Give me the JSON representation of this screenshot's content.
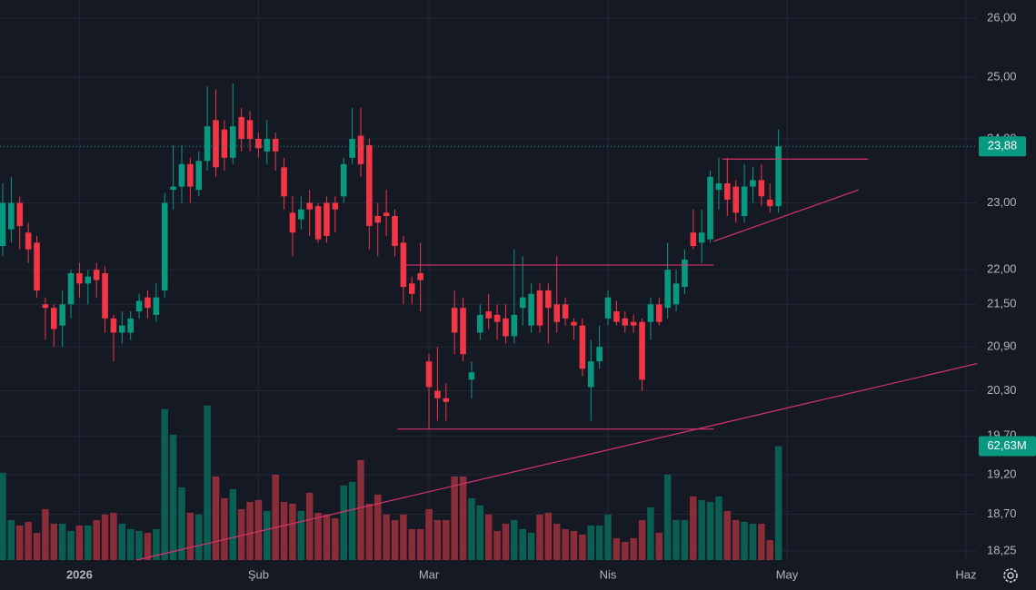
{
  "chart_data": {
    "type": "candlestick",
    "log_scale": true,
    "grid": true,
    "background": "#151924",
    "grid_color": "#232734",
    "text_color": "#b2b5be",
    "up_color": "#089981",
    "down_color": "#f23645",
    "up_volume_color": "#0b5e52",
    "down_volume_color": "#8a2d38",
    "x": [
      0,
      1,
      2,
      3,
      4,
      5,
      6,
      7,
      8,
      9,
      10,
      11,
      12,
      13,
      14,
      15,
      16,
      17,
      18,
      19,
      20,
      21,
      22,
      23,
      24,
      25,
      26,
      27,
      28,
      29,
      30,
      31,
      32,
      33,
      34,
      35,
      36,
      37,
      38,
      39,
      40,
      41,
      42,
      43,
      44,
      45,
      46,
      47,
      48,
      49,
      50,
      51,
      52,
      53,
      54,
      55,
      56,
      57,
      58,
      59,
      60,
      61,
      62,
      63,
      64,
      65,
      66,
      67,
      68,
      69,
      70,
      71,
      72,
      73,
      74,
      75,
      76,
      77,
      78,
      79,
      80,
      81,
      82,
      83,
      84,
      85,
      86,
      87,
      88,
      89,
      90,
      91
    ],
    "open": [
      22.35,
      22.6,
      23.0,
      22.55,
      22.4,
      21.5,
      21.45,
      21.2,
      21.5,
      21.95,
      21.8,
      22.0,
      21.95,
      21.3,
      21.1,
      21.1,
      21.4,
      21.6,
      21.35,
      21.7,
      23.2,
      23.25,
      23.6,
      23.2,
      23.65,
      24.3,
      24.15,
      23.7,
      24.35,
      24.3,
      24.0,
      23.8,
      24.0,
      23.55,
      22.85,
      22.75,
      23.0,
      22.95,
      23.0,
      23.0,
      23.1,
      23.7,
      24.05,
      23.9,
      22.8,
      22.85,
      22.8,
      22.4,
      21.8,
      21.95,
      20.7,
      20.3,
      20.2,
      21.45,
      21.45,
      20.45,
      21.1,
      21.4,
      21.35,
      21.3,
      21.05,
      21.45,
      21.2,
      21.7,
      21.7,
      21.5,
      21.5,
      21.25,
      21.2,
      20.35,
      20.7,
      21.3,
      21.4,
      21.3,
      21.25,
      21.25,
      21.25,
      21.5,
      21.45,
      21.5,
      21.75,
      22.55,
      22.4,
      22.45,
      23.2,
      23.3,
      23.25,
      22.8,
      23.25,
      23.35,
      23.05,
      22.95
    ],
    "high": [
      23.3,
      23.4,
      23.1,
      22.7,
      22.5,
      21.6,
      21.5,
      21.7,
      22.0,
      22.1,
      22.0,
      22.1,
      22.05,
      21.35,
      21.4,
      21.4,
      21.65,
      21.7,
      21.8,
      23.15,
      23.9,
      23.9,
      23.7,
      23.8,
      24.85,
      24.8,
      24.3,
      24.9,
      24.5,
      24.45,
      24.1,
      24.3,
      24.1,
      23.7,
      23.1,
      23.1,
      23.2,
      23.0,
      23.1,
      23.1,
      23.7,
      24.5,
      24.5,
      24.0,
      23.0,
      23.2,
      22.9,
      22.5,
      21.9,
      22.4,
      20.8,
      20.9,
      20.4,
      21.7,
      21.6,
      20.7,
      21.5,
      21.65,
      21.5,
      21.5,
      22.3,
      22.2,
      21.8,
      21.8,
      21.8,
      22.2,
      21.6,
      21.3,
      21.3,
      21.0,
      21.2,
      21.7,
      21.55,
      21.4,
      21.35,
      21.3,
      21.6,
      21.6,
      22.4,
      22.0,
      22.3,
      22.9,
      22.9,
      23.5,
      23.7,
      23.7,
      23.35,
      23.6,
      23.55,
      23.6,
      23.3,
      24.15
    ],
    "low": [
      22.2,
      22.4,
      22.3,
      22.1,
      21.6,
      21.0,
      20.9,
      20.9,
      21.3,
      21.6,
      21.5,
      21.6,
      21.1,
      20.7,
      20.95,
      21.0,
      21.3,
      21.3,
      21.25,
      21.6,
      22.9,
      23.0,
      23.0,
      23.1,
      23.5,
      23.4,
      23.5,
      23.6,
      23.8,
      23.8,
      23.7,
      23.6,
      23.5,
      22.9,
      22.2,
      22.6,
      22.5,
      22.4,
      22.4,
      22.55,
      23.0,
      23.6,
      23.4,
      22.3,
      22.2,
      22.5,
      22.2,
      21.5,
      21.5,
      21.4,
      19.8,
      19.9,
      19.9,
      20.8,
      20.7,
      20.2,
      21.0,
      21.15,
      21.0,
      20.95,
      20.95,
      21.2,
      21.1,
      21.1,
      20.95,
      21.1,
      21.2,
      21.0,
      20.5,
      19.9,
      20.6,
      21.2,
      21.2,
      21.1,
      21.1,
      20.3,
      21.0,
      21.2,
      21.3,
      21.4,
      21.65,
      22.3,
      22.1,
      22.4,
      22.9,
      22.8,
      22.7,
      22.7,
      23.0,
      22.95,
      22.85,
      22.85
    ],
    "close": [
      23.0,
      23.0,
      22.65,
      22.3,
      21.7,
      21.45,
      21.15,
      21.5,
      21.95,
      21.8,
      21.9,
      21.85,
      21.3,
      21.1,
      21.2,
      21.3,
      21.55,
      21.45,
      21.6,
      23.0,
      23.25,
      23.6,
      23.25,
      23.65,
      24.2,
      23.55,
      23.7,
      24.2,
      24.0,
      24.0,
      23.85,
      24.0,
      23.8,
      23.1,
      22.55,
      22.9,
      22.9,
      22.45,
      22.5,
      22.9,
      23.6,
      24.0,
      23.6,
      22.65,
      22.7,
      22.8,
      22.35,
      21.75,
      21.65,
      21.85,
      20.35,
      20.2,
      20.15,
      21.1,
      20.8,
      20.55,
      21.35,
      21.3,
      21.25,
      21.05,
      21.35,
      21.6,
      21.65,
      21.2,
      21.45,
      21.25,
      21.3,
      21.2,
      20.6,
      20.7,
      20.9,
      21.6,
      21.25,
      21.2,
      21.2,
      20.45,
      21.5,
      21.25,
      22.0,
      21.8,
      22.15,
      22.35,
      22.55,
      23.4,
      23.3,
      23.05,
      22.85,
      23.25,
      23.35,
      23.1,
      22.95,
      23.88
    ],
    "volume": [
      48,
      22,
      19,
      21,
      15,
      28,
      20,
      20,
      16,
      19,
      19,
      22,
      25,
      26,
      20,
      17,
      16,
      15,
      17,
      83,
      69,
      40,
      26,
      25,
      85,
      46,
      34,
      39,
      28,
      32,
      33,
      27,
      47,
      32,
      31,
      27,
      37,
      26,
      25,
      23,
      41,
      43,
      55,
      31,
      36,
      25,
      22,
      25,
      17,
      17,
      28,
      22,
      22,
      46,
      46,
      34,
      30,
      25,
      16,
      20,
      22,
      17,
      15,
      25,
      26,
      20,
      17,
      16,
      14,
      19,
      19,
      25,
      12,
      10,
      12,
      22,
      29,
      15,
      47,
      22,
      22,
      35,
      33,
      32,
      35,
      27,
      22,
      21,
      20,
      20,
      11,
      62.63
    ],
    "last_close_label": "23,88",
    "last_volume_label": "62,63M",
    "xlim": [
      -0.32,
      114.28
    ],
    "ylim": [
      18.14,
      26.32
    ],
    "vlim": [
      0,
      308
    ],
    "xticks": [
      {
        "value": 9,
        "label": "2026"
      },
      {
        "value": 30,
        "label": "Şub"
      },
      {
        "value": 50,
        "label": "Mar"
      },
      {
        "value": 71,
        "label": "Nis"
      },
      {
        "value": 92,
        "label": "May"
      },
      {
        "value": 113,
        "label": "Haz"
      }
    ],
    "yticks": [
      {
        "value": 18.25,
        "label": "18,25"
      },
      {
        "value": 18.7,
        "label": "18,70"
      },
      {
        "value": 19.2,
        "label": "19,20"
      },
      {
        "value": 19.7,
        "label": "19,70"
      },
      {
        "value": 20.3,
        "label": "20,30"
      },
      {
        "value": 20.9,
        "label": "20,90"
      },
      {
        "value": 21.5,
        "label": "21,50"
      },
      {
        "value": 22,
        "label": "22,00"
      },
      {
        "value": 23,
        "label": "23,00"
      },
      {
        "value": 24,
        "label": "24,00"
      },
      {
        "value": 25,
        "label": "25,00"
      },
      {
        "value": 26,
        "label": "26,00"
      }
    ],
    "drawings": [
      {
        "x": [
          47.3,
          83.4
        ],
        "y": [
          22.07,
          22.07
        ],
        "color": "#d6336c"
      },
      {
        "x": [
          46.3,
          83.4
        ],
        "y": [
          19.79,
          19.79
        ],
        "color": "#d6336c"
      },
      {
        "x": [
          15.7,
          114.3
        ],
        "y": [
          18.14,
          20.67
        ],
        "color": "#d6336c"
      },
      {
        "x": [
          84.4,
          101.5
        ],
        "y": [
          23.68,
          23.68
        ],
        "color": "#d6336c"
      },
      {
        "x": [
          83.4,
          100.4
        ],
        "y": [
          22.42,
          23.2
        ],
        "color": "#d6336c"
      }
    ]
  }
}
